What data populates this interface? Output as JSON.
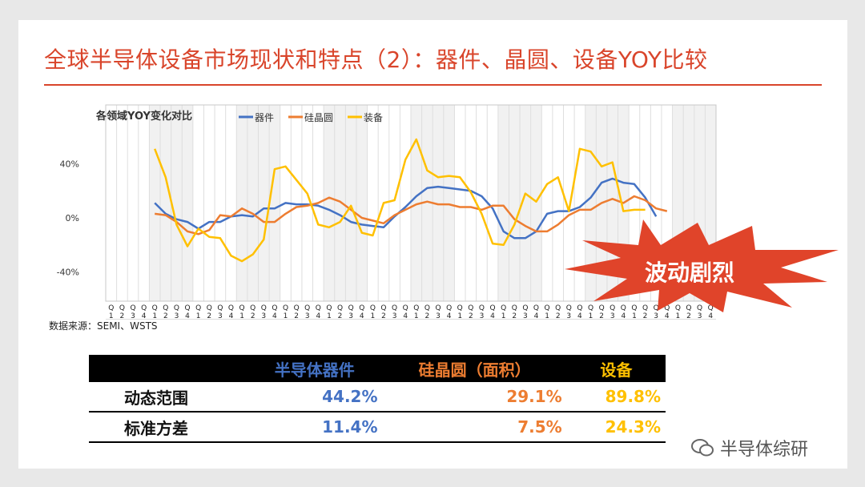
{
  "title": "全球半导体设备市场现状和特点（2）：器件、晶圆、设备YOY比较",
  "source": "数据来源：SEMI、WSTS",
  "burst_label": "波动剧烈",
  "watermark": "半导体综研",
  "colors": {
    "title": "#d9452b",
    "devices": "#4472c4",
    "wafer": "#ed7d31",
    "equipment": "#ffc000",
    "burst": "#e0442a"
  },
  "chart_data": {
    "type": "line",
    "title": "各领域YOY变化对比",
    "yticks": [
      "40%",
      "0%",
      "-40%"
    ],
    "ylim": [
      -40,
      50
    ],
    "years": [
      "2010",
      "2011",
      "2012",
      "2013",
      "2014",
      "2015",
      "2016",
      "2017",
      "2018",
      "2019",
      "2020",
      "2021",
      "2022",
      "2023"
    ],
    "quarter_letter": "Q",
    "quarters": [
      "1",
      "2",
      "3",
      "4"
    ],
    "legend": [
      "器件",
      "硅晶圆",
      "装备"
    ],
    "series": [
      {
        "name": "器件",
        "color": "#4472c4",
        "start_index": 4,
        "values": [
          11,
          3,
          -1,
          -3,
          -8,
          -3,
          -3,
          1,
          2,
          1,
          7,
          7,
          11,
          10,
          10,
          9,
          6,
          2,
          -3,
          -5,
          -6,
          -7,
          1,
          8,
          16,
          22,
          23,
          22,
          21,
          20,
          16,
          7,
          -10,
          -15,
          -15,
          -10,
          3,
          5,
          5,
          8,
          15,
          26,
          29,
          26,
          25,
          15,
          1
        ]
      },
      {
        "name": "硅晶圆",
        "color": "#ed7d31",
        "start_index": 4,
        "values": [
          3,
          2,
          -3,
          -10,
          -12,
          -9,
          2,
          1,
          7,
          3,
          -3,
          -3,
          3,
          8,
          9,
          11,
          15,
          12,
          6,
          0,
          -2,
          -4,
          2,
          6,
          10,
          12,
          10,
          10,
          8,
          8,
          6,
          9,
          9,
          -1,
          -6,
          -10,
          -10,
          -5,
          2,
          6,
          6,
          11,
          14,
          11,
          16,
          13,
          7,
          5
        ]
      },
      {
        "name": "装备",
        "color": "#ffc000",
        "start_index": 4,
        "values": [
          51,
          30,
          -5,
          -21,
          -8,
          -14,
          -15,
          -28,
          -32,
          -27,
          -16,
          36,
          38,
          28,
          18,
          -5,
          -7,
          -3,
          9,
          -11,
          -13,
          11,
          13,
          43,
          58,
          35,
          30,
          31,
          30,
          19,
          3,
          -19,
          -20,
          -5,
          18,
          12,
          25,
          30,
          5,
          51,
          49,
          38,
          41,
          5,
          6,
          6
        ]
      }
    ]
  },
  "table": {
    "headers": [
      "",
      "半导体器件",
      "硅晶圆（面积）",
      "设备"
    ],
    "rows": [
      {
        "name": "动态范围",
        "values": [
          "44.2%",
          "29.1%",
          "89.8%"
        ]
      },
      {
        "name": "标准方差",
        "values": [
          "11.4%",
          "7.5%",
          "24.3%"
        ]
      }
    ]
  }
}
